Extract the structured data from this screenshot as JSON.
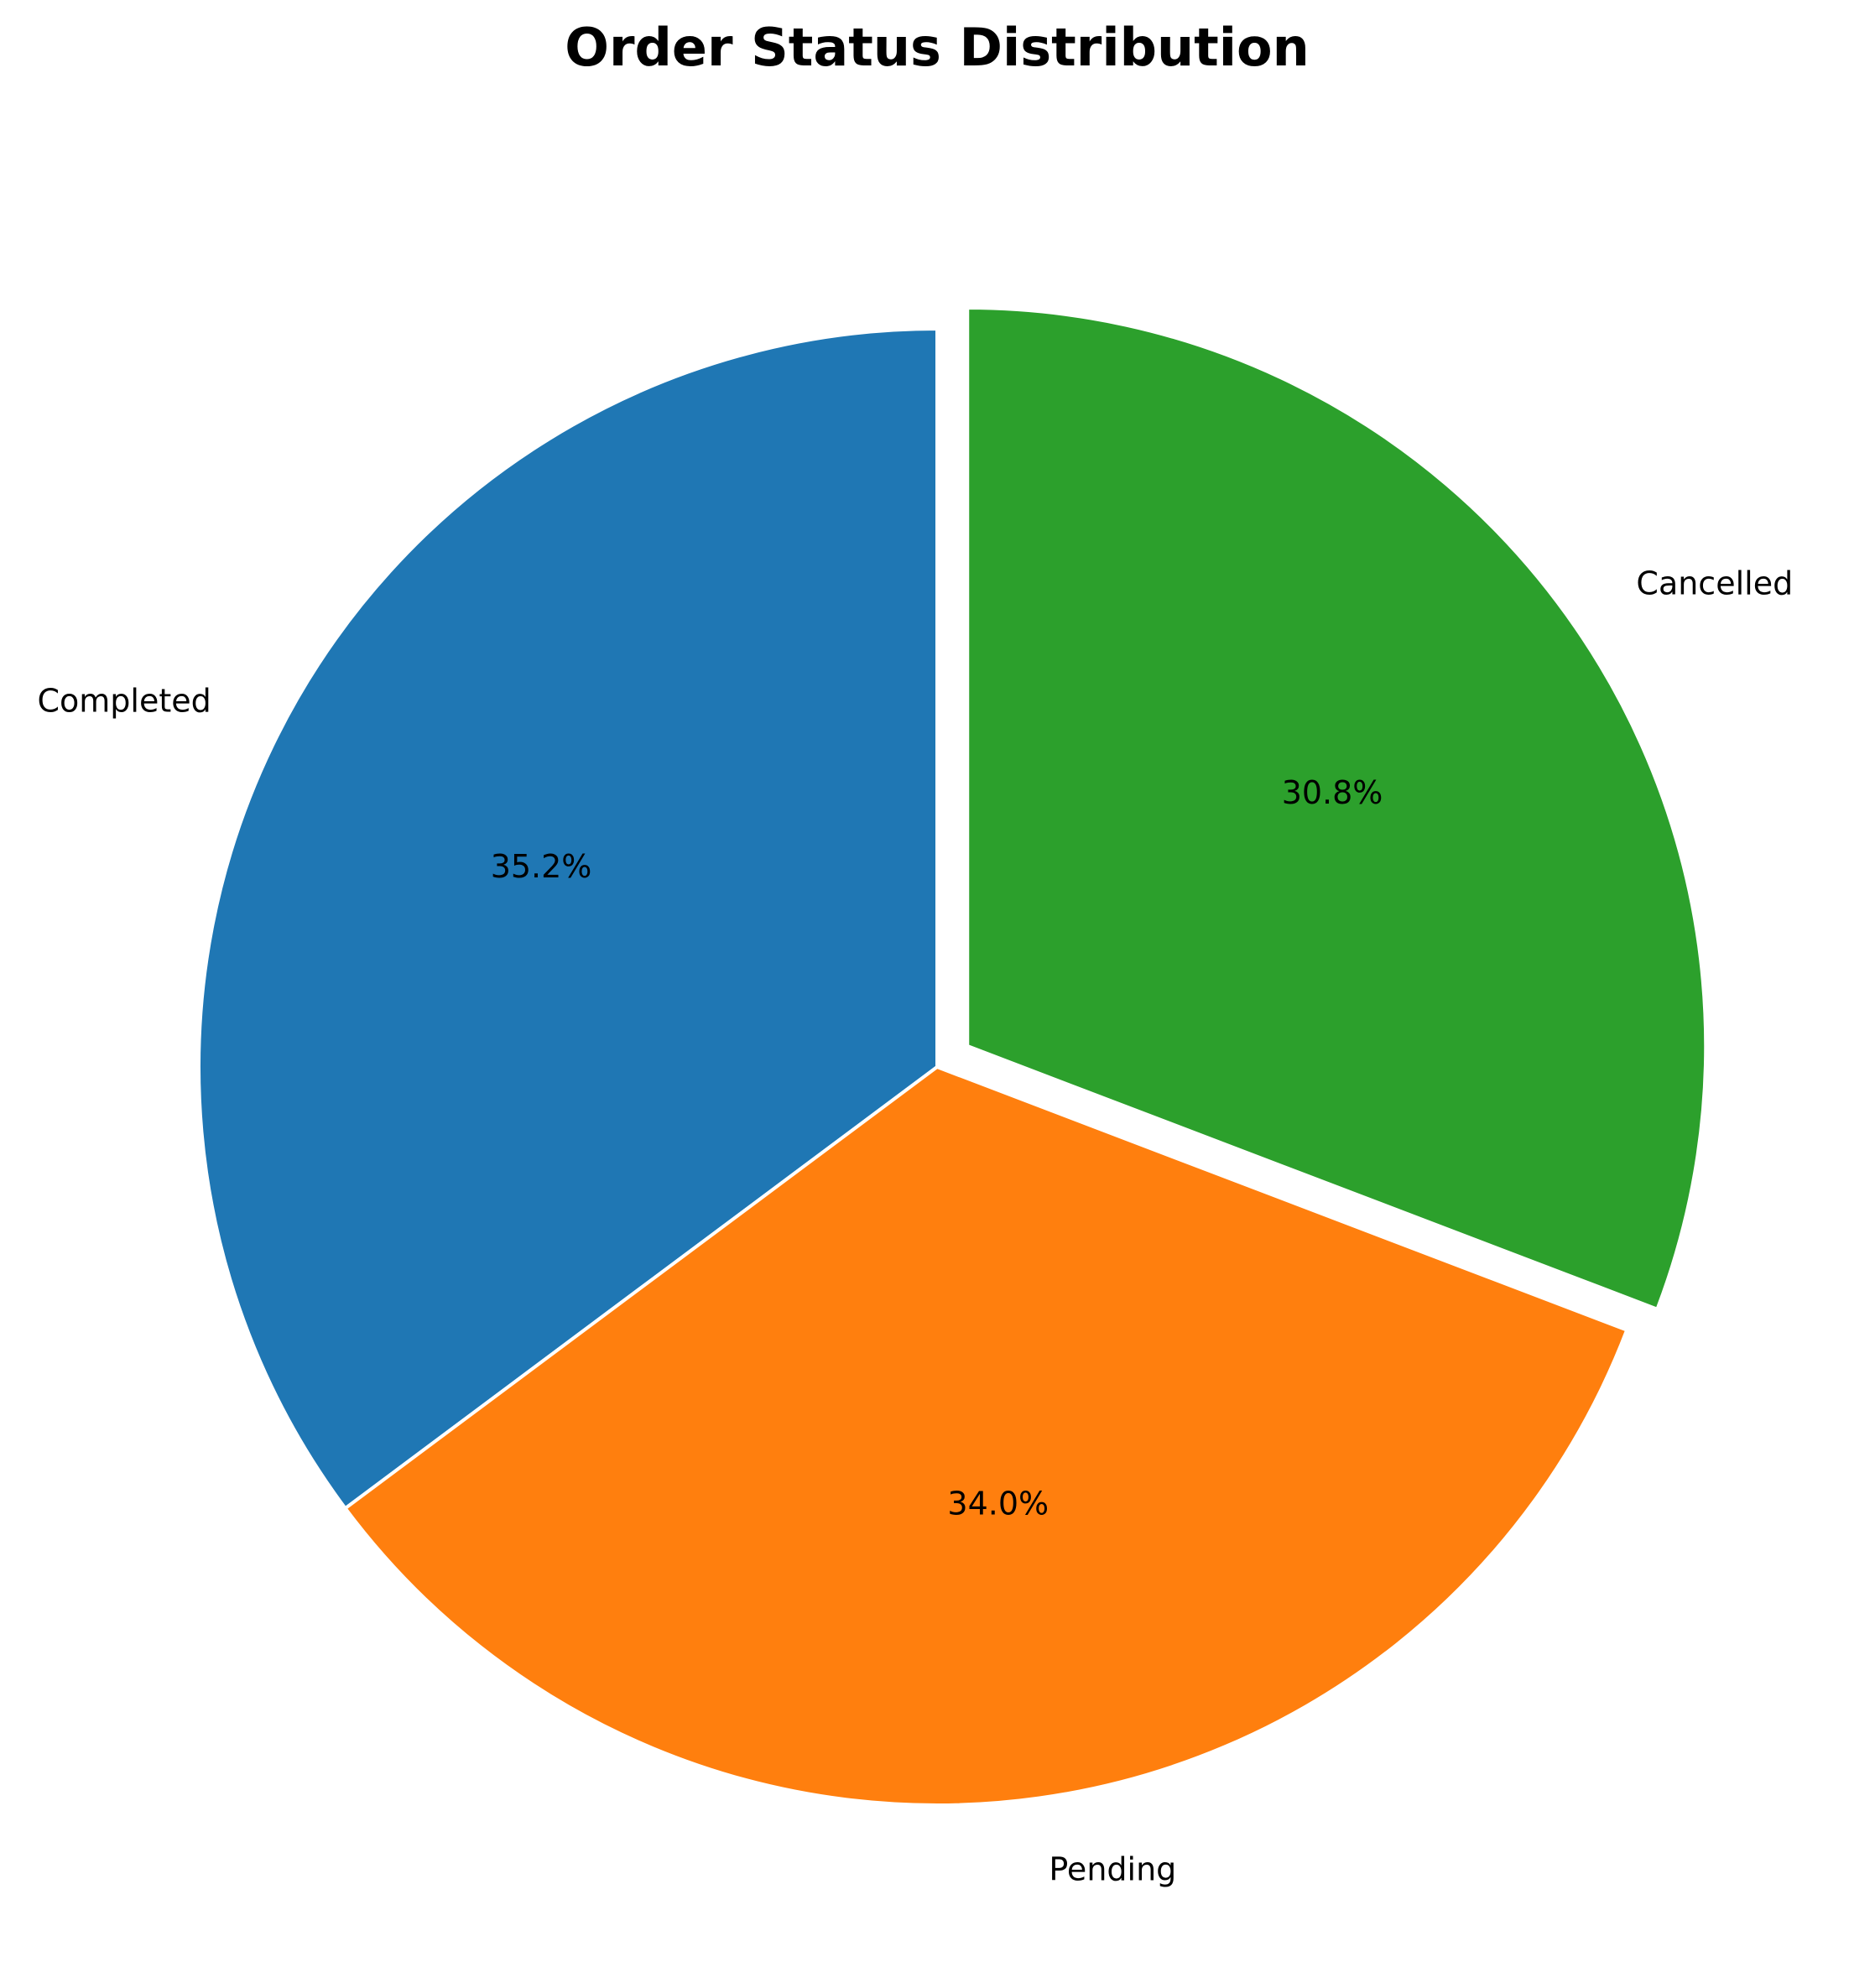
{
  "chart_data": {
    "type": "pie",
    "title": "Order Status Distribution",
    "categories": [
      "Completed",
      "Pending",
      "Cancelled"
    ],
    "values": [
      35.2,
      34.0,
      30.8
    ],
    "value_labels": [
      "35.2%",
      "34.0%",
      "30.8%"
    ],
    "colors": [
      "#1f77b4",
      "#ff7f0e",
      "#2ca02c"
    ],
    "exploded": [
      false,
      false,
      true
    ],
    "start_angle_deg": 90,
    "direction": "counterclockwise",
    "legend": "none"
  }
}
